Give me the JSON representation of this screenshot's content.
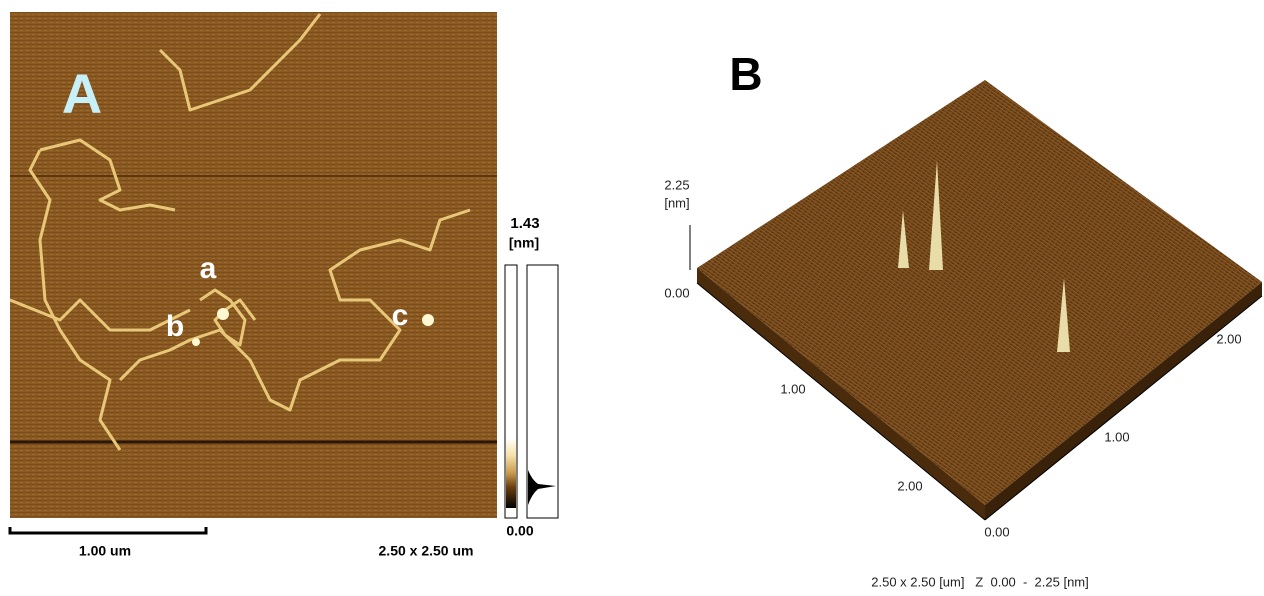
{
  "panel_a": {
    "label": "A",
    "annotations": [
      "a",
      "b",
      "c"
    ],
    "colorbar": {
      "max": "1.43",
      "unit": "[nm]",
      "min": "0.00"
    },
    "scale_bar": "1.00 um",
    "size": "2.50 x 2.50 um"
  },
  "panel_b": {
    "label": "B",
    "z_axis": {
      "max": "2.25",
      "unit": "[nm]",
      "min": "0.00"
    },
    "left_axis": [
      "1.00",
      "2.00"
    ],
    "origin": "0.00",
    "right_axis": [
      "1.00",
      "2.00"
    ],
    "caption": "2.50 x 2.50 [um]   Z  0.00  -  2.25 [nm]"
  }
}
